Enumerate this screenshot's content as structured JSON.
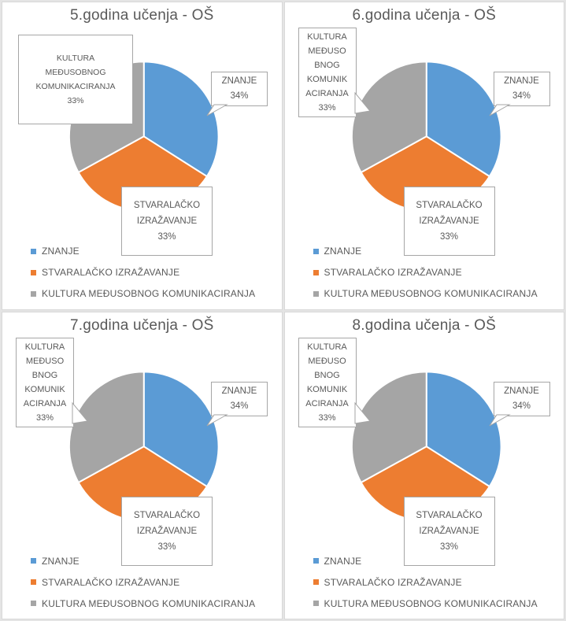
{
  "colors": {
    "znanje": "#5B9BD5",
    "stvaralacko": "#ED7D31",
    "kultura": "#A5A5A5",
    "text": "#595959",
    "callout_border": "#A6A6A6",
    "panel_border": "#D9D9D9"
  },
  "chart_data": [
    {
      "type": "pie",
      "title": "5.godina učenja - OŠ",
      "labels": [
        "ZNANJE",
        "STVARALAČKO IZRAŽAVANJE",
        "KULTURA MEĐUSOBNOG KOMUNIKACIRANJA"
      ],
      "values": [
        34,
        33,
        33
      ],
      "unit": "percent",
      "colors": [
        "#5B9BD5",
        "#ED7D31",
        "#A5A5A5"
      ],
      "start_angle": 0,
      "direction": "clockwise",
      "legend_position": "bottom-left",
      "callouts": {
        "kultura_lines": [
          "KULTURA",
          "MEĐUSOBNOG",
          "KOMUNIKACIRANJA",
          "33%"
        ],
        "znanje_lines": [
          "ZNANJE",
          "34%"
        ],
        "stvaralacko_lines": [
          "STVARALAČKO",
          "IZRAŽAVANJE",
          "33%"
        ]
      }
    },
    {
      "type": "pie",
      "title": "6.godina učenja - OŠ",
      "labels": [
        "ZNANJE",
        "STVARALAČKO IZRAŽAVANJE",
        "KULTURA MEĐUSOBNOG KOMUNIKACIRANJA"
      ],
      "values": [
        34,
        33,
        33
      ],
      "unit": "percent",
      "colors": [
        "#5B9BD5",
        "#ED7D31",
        "#A5A5A5"
      ],
      "start_angle": 0,
      "direction": "clockwise",
      "legend_position": "bottom-left",
      "callouts": {
        "kultura_lines": [
          "KULTURA",
          "MEĐUSO",
          "BNOG",
          "KOMUNIK",
          "ACIRANJA",
          "33%"
        ],
        "znanje_lines": [
          "ZNANJE",
          "34%"
        ],
        "stvaralacko_lines": [
          "STVARALAČKO",
          "IZRAŽAVANJE",
          "33%"
        ]
      }
    },
    {
      "type": "pie",
      "title": "7.godina učenja - OŠ",
      "labels": [
        "ZNANJE",
        "STVARALAČKO IZRAŽAVANJE",
        "KULTURA MEĐUSOBNOG KOMUNIKACIRANJA"
      ],
      "values": [
        34,
        33,
        33
      ],
      "unit": "percent",
      "colors": [
        "#5B9BD5",
        "#ED7D31",
        "#A5A5A5"
      ],
      "start_angle": 0,
      "direction": "clockwise",
      "legend_position": "bottom-left",
      "callouts": {
        "kultura_lines": [
          "KULTURA",
          "MEĐUSO",
          "BNOG",
          "KOMUNIK",
          "ACIRANJA",
          "33%"
        ],
        "znanje_lines": [
          "ZNANJE",
          "34%"
        ],
        "stvaralacko_lines": [
          "STVARALAČKO",
          "IZRAŽAVANJE",
          "33%"
        ]
      }
    },
    {
      "type": "pie",
      "title": "8.godina učenja - OŠ",
      "labels": [
        "ZNANJE",
        "STVARALAČKO IZRAŽAVANJE",
        "KULTURA MEĐUSOBNOG KOMUNIKACIRANJA"
      ],
      "values": [
        34,
        33,
        33
      ],
      "unit": "percent",
      "colors": [
        "#5B9BD5",
        "#ED7D31",
        "#A5A5A5"
      ],
      "start_angle": 0,
      "direction": "clockwise",
      "legend_position": "bottom-left",
      "callouts": {
        "kultura_lines": [
          "KULTURA",
          "MEĐUSO",
          "BNOG",
          "KOMUNIK",
          "ACIRANJA",
          "33%"
        ],
        "znanje_lines": [
          "ZNANJE",
          "34%"
        ],
        "stvaralacko_lines": [
          "STVARALAČKO",
          "IZRAŽAVANJE",
          "33%"
        ]
      }
    }
  ]
}
